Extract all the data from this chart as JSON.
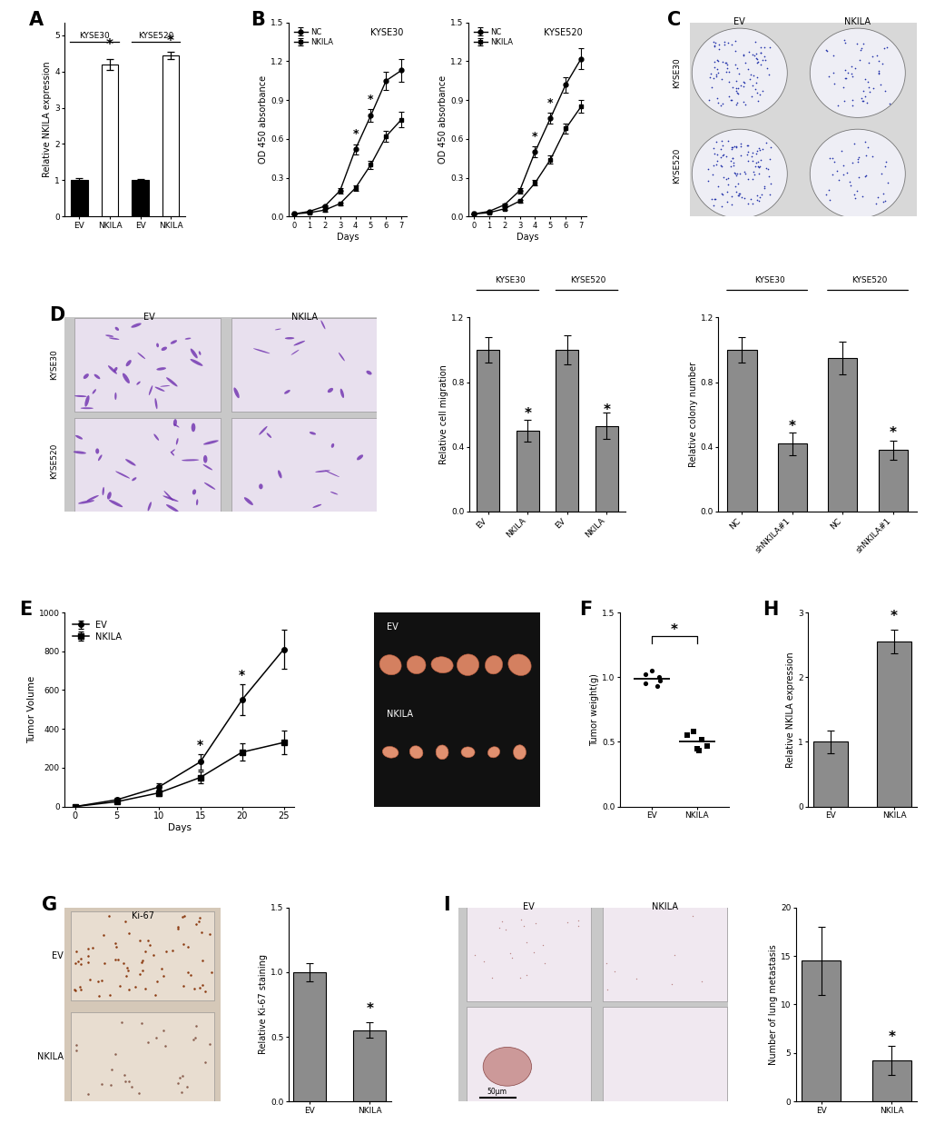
{
  "panel_A": {
    "categories": [
      "EV",
      "NKILA",
      "EV",
      "NKILA"
    ],
    "values": [
      1.0,
      4.2,
      1.0,
      4.45
    ],
    "errors": [
      0.05,
      0.15,
      0.04,
      0.1
    ],
    "bar_colors": [
      "black",
      "white",
      "black",
      "white"
    ],
    "ylabel": "Relative NKILA expression",
    "ylim": [
      0,
      5.2
    ],
    "yticks": [
      0,
      1,
      2,
      3,
      4,
      5
    ]
  },
  "panel_B_KYSE30": {
    "days": [
      0,
      1,
      2,
      3,
      4,
      5,
      6,
      7
    ],
    "NC": [
      0.02,
      0.04,
      0.08,
      0.2,
      0.52,
      0.78,
      1.05,
      1.13
    ],
    "NKILA": [
      0.02,
      0.03,
      0.05,
      0.1,
      0.22,
      0.4,
      0.62,
      0.75
    ],
    "NC_err": [
      0.005,
      0.005,
      0.01,
      0.02,
      0.04,
      0.05,
      0.07,
      0.09
    ],
    "NKILA_err": [
      0.005,
      0.005,
      0.01,
      0.01,
      0.02,
      0.03,
      0.04,
      0.06
    ],
    "ylabel": "OD 450 absorbance",
    "xlabel": "Days",
    "ylim": [
      0.0,
      1.5
    ],
    "yticks": [
      0.0,
      0.3,
      0.6,
      0.9,
      1.2,
      1.5
    ],
    "title_text": "KYSE30",
    "star_days": [
      4,
      5
    ]
  },
  "panel_B_KYSE520": {
    "days": [
      0,
      1,
      2,
      3,
      4,
      5,
      6,
      7
    ],
    "NC": [
      0.02,
      0.04,
      0.09,
      0.2,
      0.5,
      0.76,
      1.02,
      1.22
    ],
    "NKILA": [
      0.02,
      0.03,
      0.06,
      0.12,
      0.26,
      0.44,
      0.68,
      0.85
    ],
    "NC_err": [
      0.005,
      0.005,
      0.01,
      0.02,
      0.04,
      0.04,
      0.06,
      0.08
    ],
    "NKILA_err": [
      0.005,
      0.005,
      0.01,
      0.01,
      0.02,
      0.03,
      0.04,
      0.05
    ],
    "ylabel": "OD 450 absorbance",
    "xlabel": "Days",
    "ylim": [
      0.0,
      1.5
    ],
    "yticks": [
      0.0,
      0.3,
      0.6,
      0.9,
      1.2,
      1.5
    ],
    "title_text": "KYSE520",
    "star_days": [
      4,
      5
    ]
  },
  "panel_D_bar": {
    "categories": [
      "EV",
      "NKILA",
      "EV",
      "NKILA"
    ],
    "values": [
      1.0,
      0.5,
      1.0,
      0.53
    ],
    "errors": [
      0.08,
      0.07,
      0.09,
      0.08
    ],
    "ylabel": "Relative cell migration",
    "ylim": [
      0,
      1.2
    ],
    "yticks": [
      0.0,
      0.4,
      0.8,
      1.2
    ],
    "groups": [
      "KYSE30",
      "KYSE520"
    ]
  },
  "panel_C_bar": {
    "categories": [
      "NC",
      "shNKILA#1",
      "NC",
      "shNKILA#1"
    ],
    "values": [
      1.0,
      0.42,
      0.95,
      0.38
    ],
    "errors": [
      0.08,
      0.07,
      0.1,
      0.06
    ],
    "ylabel": "Relative colony number",
    "ylim": [
      0,
      1.2
    ],
    "yticks": [
      0.0,
      0.4,
      0.8,
      1.2
    ],
    "groups": [
      "KYSE30",
      "KYSE520"
    ]
  },
  "panel_E": {
    "days": [
      0,
      5,
      10,
      15,
      20,
      25
    ],
    "EV": [
      0,
      35,
      100,
      230,
      550,
      810
    ],
    "NKILA": [
      0,
      25,
      70,
      150,
      280,
      330
    ],
    "EV_err": [
      0,
      10,
      20,
      40,
      80,
      100
    ],
    "NKILA_err": [
      0,
      8,
      15,
      30,
      45,
      60
    ],
    "ylabel": "Tumor Volume",
    "xlabel": "Days",
    "ylim": [
      0,
      1000
    ],
    "yticks": [
      0,
      200,
      400,
      600,
      800,
      1000
    ],
    "star_days_idx": [
      3,
      4
    ]
  },
  "panel_F": {
    "EV_points": [
      1.0,
      0.97,
      1.02,
      0.95,
      1.05,
      0.93
    ],
    "NKILA_points": [
      0.52,
      0.47,
      0.55,
      0.45,
      0.58,
      0.43
    ],
    "EV_mean": 0.99,
    "NKILA_mean": 0.5,
    "ylabel": "Tumor weight(g)",
    "ylim": [
      0,
      1.5
    ],
    "yticks": [
      0.0,
      0.5,
      1.0,
      1.5
    ]
  },
  "panel_G_bar": {
    "categories": [
      "EV",
      "NKILA"
    ],
    "values": [
      1.0,
      0.55
    ],
    "errors": [
      0.07,
      0.06
    ],
    "ylabel": "Relative Ki-67 staining",
    "ylim": [
      0,
      1.5
    ],
    "yticks": [
      0.0,
      0.5,
      1.0,
      1.5
    ]
  },
  "panel_H": {
    "categories": [
      "EV",
      "NKILA"
    ],
    "values": [
      1.0,
      2.55
    ],
    "errors": [
      0.18,
      0.18
    ],
    "ylabel": "Relative NKILA expression",
    "ylim": [
      0,
      3
    ],
    "yticks": [
      0,
      1,
      2,
      3
    ]
  },
  "panel_I_bar": {
    "categories": [
      "EV",
      "NKILA"
    ],
    "values": [
      14.5,
      4.2
    ],
    "errors": [
      3.5,
      1.5
    ],
    "ylabel": "Number of lung metastasis",
    "ylim": [
      0,
      20
    ],
    "yticks": [
      0,
      5,
      10,
      15,
      20
    ]
  },
  "bar_gray": "#8c8c8c",
  "bg": "#ffffff"
}
